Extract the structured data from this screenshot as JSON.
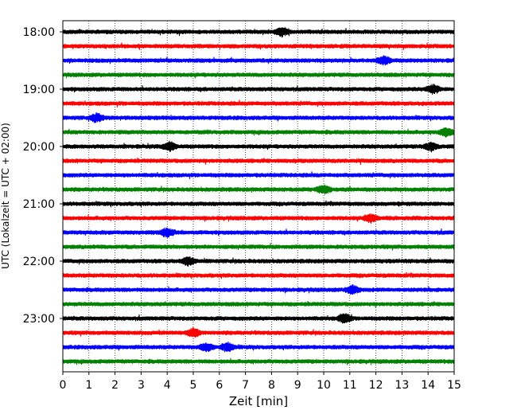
{
  "chart_data": {
    "type": "line",
    "subtype": "helicorder",
    "xlabel": "Zeit  [min]",
    "ylabel": "UTC (Lokalzeit = UTC + 02:00)",
    "xlim": [
      0,
      15
    ],
    "x_ticks": [
      "0",
      "1",
      "2",
      "3",
      "4",
      "5",
      "6",
      "7",
      "8",
      "9",
      "10",
      "11",
      "12",
      "13",
      "14",
      "15"
    ],
    "y_tick_labels": [
      "18:00",
      "19:00",
      "20:00",
      "21:00",
      "22:00",
      "23:00"
    ],
    "line_interval_minutes": 15,
    "trace_start_times": [
      "18:00",
      "18:15",
      "18:30",
      "18:45",
      "19:00",
      "19:15",
      "19:30",
      "19:45",
      "20:00",
      "20:15",
      "20:30",
      "20:45",
      "21:00",
      "21:15",
      "21:30",
      "21:45",
      "22:00",
      "22:15",
      "22:30",
      "22:45",
      "23:00",
      "23:15",
      "23:30",
      "23:45"
    ],
    "trace_colors": [
      "#000000",
      "#ff0000",
      "#0000ff",
      "#008000"
    ],
    "grid": "vertical-dotted",
    "series": [
      {
        "start": "18:00",
        "color": "#000000",
        "events_min": [
          8.4
        ]
      },
      {
        "start": "18:15",
        "color": "#ff0000",
        "events_min": []
      },
      {
        "start": "18:30",
        "color": "#0000ff",
        "events_min": [
          12.3
        ]
      },
      {
        "start": "18:45",
        "color": "#008000",
        "events_min": []
      },
      {
        "start": "19:00",
        "color": "#000000",
        "events_min": [
          14.2
        ]
      },
      {
        "start": "19:15",
        "color": "#ff0000",
        "events_min": []
      },
      {
        "start": "19:30",
        "color": "#0000ff",
        "events_min": [
          1.3
        ]
      },
      {
        "start": "19:45",
        "color": "#008000",
        "events_min": [
          14.7
        ]
      },
      {
        "start": "20:00",
        "color": "#000000",
        "events_min": [
          4.1,
          14.1
        ]
      },
      {
        "start": "20:15",
        "color": "#ff0000",
        "events_min": []
      },
      {
        "start": "20:30",
        "color": "#0000ff",
        "events_min": []
      },
      {
        "start": "20:45",
        "color": "#008000",
        "events_min": [
          10.0
        ]
      },
      {
        "start": "21:00",
        "color": "#000000",
        "events_min": []
      },
      {
        "start": "21:15",
        "color": "#ff0000",
        "events_min": [
          11.8
        ]
      },
      {
        "start": "21:30",
        "color": "#0000ff",
        "events_min": [
          4.0
        ]
      },
      {
        "start": "21:45",
        "color": "#008000",
        "events_min": []
      },
      {
        "start": "22:00",
        "color": "#000000",
        "events_min": [
          4.8
        ]
      },
      {
        "start": "22:15",
        "color": "#ff0000",
        "events_min": []
      },
      {
        "start": "22:30",
        "color": "#0000ff",
        "events_min": [
          11.1
        ]
      },
      {
        "start": "22:45",
        "color": "#008000",
        "events_min": []
      },
      {
        "start": "23:00",
        "color": "#000000",
        "events_min": [
          10.8
        ]
      },
      {
        "start": "23:15",
        "color": "#ff0000",
        "events_min": [
          5.0
        ]
      },
      {
        "start": "23:30",
        "color": "#0000ff",
        "events_min": [
          5.5,
          6.3
        ]
      },
      {
        "start": "23:45",
        "color": "#008000",
        "events_min": []
      }
    ]
  }
}
